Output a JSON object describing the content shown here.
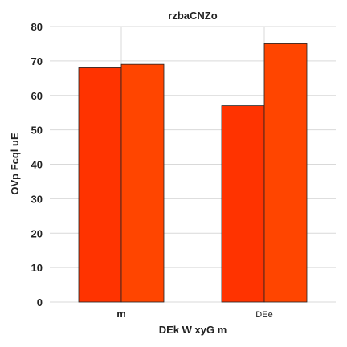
{
  "chart_data": {
    "type": "bar",
    "title": "rzbaCNZo",
    "xlabel": "DEk  W  xyG m",
    "ylabel": "OVp Fcql uE",
    "categories": [
      "m",
      "DEe"
    ],
    "series": [
      {
        "values": [
          68,
          57
        ]
      },
      {
        "values": [
          69,
          75
        ]
      }
    ],
    "ylim": [
      0,
      80
    ],
    "yticks": [
      0,
      10,
      20,
      30,
      40,
      50,
      60,
      70,
      80
    ],
    "grid": true,
    "bar_colors": [
      "#ff3300",
      "#ff4500"
    ],
    "bar_edge_color": "#222222",
    "grid_color": "#d9d9d9"
  }
}
